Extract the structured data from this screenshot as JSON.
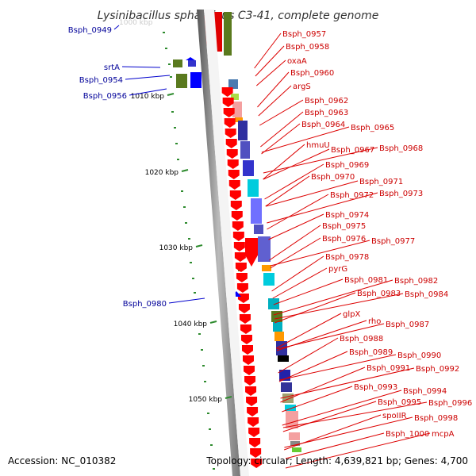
{
  "title": "Lysinibacillus sphaericus C3-41, complete genome",
  "footer": {
    "accession": "Accession: NC_010382",
    "stats": "Topology: circular; Length: 4,639,821 bp; Genes: 4,700"
  },
  "colors": {
    "forward_gene": "#ff0000",
    "reverse_gene": "#0000ff",
    "cds_label_forward": "#cc0000",
    "cds_label_reverse": "#000099",
    "gc_skew": "#2e8b2e",
    "backbone": "#888888"
  },
  "ticks": [
    "1010 kbp",
    "1020 kbp",
    "1030 kbp",
    "1040 kbp",
    "1050 kbp"
  ],
  "left_labels": [
    "Bsph_0949",
    "srtA",
    "Bsph_0954",
    "Bsph_0956",
    "Bsph_0980"
  ],
  "right_labels": [
    "Bsph_0957",
    "Bsph_0958",
    "oxaA",
    "Bsph_0960",
    "argS",
    "Bsph_0962",
    "Bsph_0963",
    "Bsph_0964",
    "Bsph_0965",
    "hmuU",
    "Bsph_0967",
    "Bsph_0968",
    "Bsph_0969",
    "Bsph_0970",
    "Bsph_0971",
    "Bsph_0972",
    "Bsph_0973",
    "Bsph_0974",
    "Bsph_0975",
    "Bsph_0976",
    "Bsph_0977",
    "Bsph_0978",
    "pyrG",
    "Bsph_0981",
    "Bsph_0982",
    "Bsph_0983",
    "Bsph_0984",
    "glpX",
    "rho",
    "Bsph_0987",
    "Bsph_0988",
    "Bsph_0989",
    "Bsph_0990",
    "Bsph_0991",
    "Bsph_0992",
    "Bsph_0993",
    "Bsph_0994",
    "Bsph_0995",
    "Bsph_0996",
    "spoIIR",
    "Bsph_0998",
    "Bsph_1000",
    "mcpA"
  ]
}
